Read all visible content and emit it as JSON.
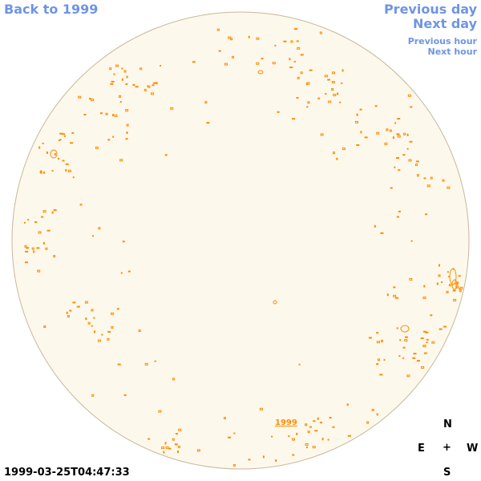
{
  "nav": {
    "back_label": "Back to 1999",
    "prev_day_label": "Previous day",
    "next_day_label": "Next day",
    "prev_hour_label": "Previous hour",
    "next_hour_label": "Next hour"
  },
  "map": {
    "center_label": "1999",
    "timestamp": "1999-03-25T04:47:33",
    "disk_color": "#fdf8ec",
    "disk_border_color": "#c8b89a",
    "feature_color": "#ff8c00"
  },
  "compass": {
    "north": "N",
    "east": "E",
    "center": "+",
    "west": "W",
    "south": "S"
  },
  "colors": {
    "link": "#6f95e3",
    "text": "#000000"
  }
}
